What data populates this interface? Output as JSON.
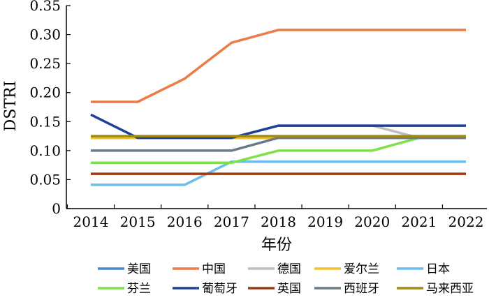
{
  "chart_data": {
    "type": "line",
    "title": "",
    "xlabel": "年份",
    "ylabel": "DSTRI",
    "categories": [
      "2014",
      "2015",
      "2016",
      "2017",
      "2018",
      "2019",
      "2020",
      "2021",
      "2022"
    ],
    "ylim": [
      0,
      0.35
    ],
    "yticks": [
      "0",
      "0.05",
      "0.10",
      "0.15",
      "0.20",
      "0.25",
      "0.30",
      "0.35"
    ],
    "grid": false,
    "legend_position": "bottom",
    "series": [
      {
        "name": "美国",
        "color": "#4a86c8",
        "values": [
          0.122,
          0.122,
          0.122,
          0.122,
          0.122,
          0.122,
          0.122,
          0.122,
          0.122
        ]
      },
      {
        "name": "中国",
        "color": "#ec7b45",
        "values": [
          0.184,
          0.184,
          0.224,
          0.286,
          0.308,
          0.308,
          0.308,
          0.308,
          0.308
        ]
      },
      {
        "name": "德国",
        "color": "#bcbec0",
        "values": [
          0.122,
          0.122,
          0.122,
          0.122,
          0.143,
          0.143,
          0.143,
          0.122,
          0.122
        ]
      },
      {
        "name": "爱尔兰",
        "color": "#f2c12e",
        "values": [
          0.122,
          0.122,
          0.122,
          0.122,
          0.122,
          0.122,
          0.122,
          0.122,
          0.122
        ]
      },
      {
        "name": "日本",
        "color": "#6cbcec",
        "values": [
          0.041,
          0.041,
          0.041,
          0.081,
          0.081,
          0.081,
          0.081,
          0.081,
          0.081
        ]
      },
      {
        "name": "芬兰",
        "color": "#7ee04a",
        "values": [
          0.079,
          0.079,
          0.079,
          0.079,
          0.1,
          0.1,
          0.1,
          0.122,
          0.122
        ]
      },
      {
        "name": "葡萄牙",
        "color": "#1f3f9a",
        "values": [
          0.162,
          0.122,
          0.122,
          0.122,
          0.143,
          0.143,
          0.143,
          0.143,
          0.143
        ]
      },
      {
        "name": "英国",
        "color": "#9b3a14",
        "values": [
          0.06,
          0.06,
          0.06,
          0.06,
          0.06,
          0.06,
          0.06,
          0.06,
          0.06
        ]
      },
      {
        "name": "西班牙",
        "color": "#6b7a84",
        "values": [
          0.1,
          0.1,
          0.1,
          0.1,
          0.122,
          0.122,
          0.122,
          0.122,
          0.122
        ]
      },
      {
        "name": "马来西亚",
        "color": "#a08a12",
        "values": [
          0.125,
          0.125,
          0.125,
          0.125,
          0.125,
          0.125,
          0.125,
          0.125,
          0.125
        ]
      }
    ]
  }
}
